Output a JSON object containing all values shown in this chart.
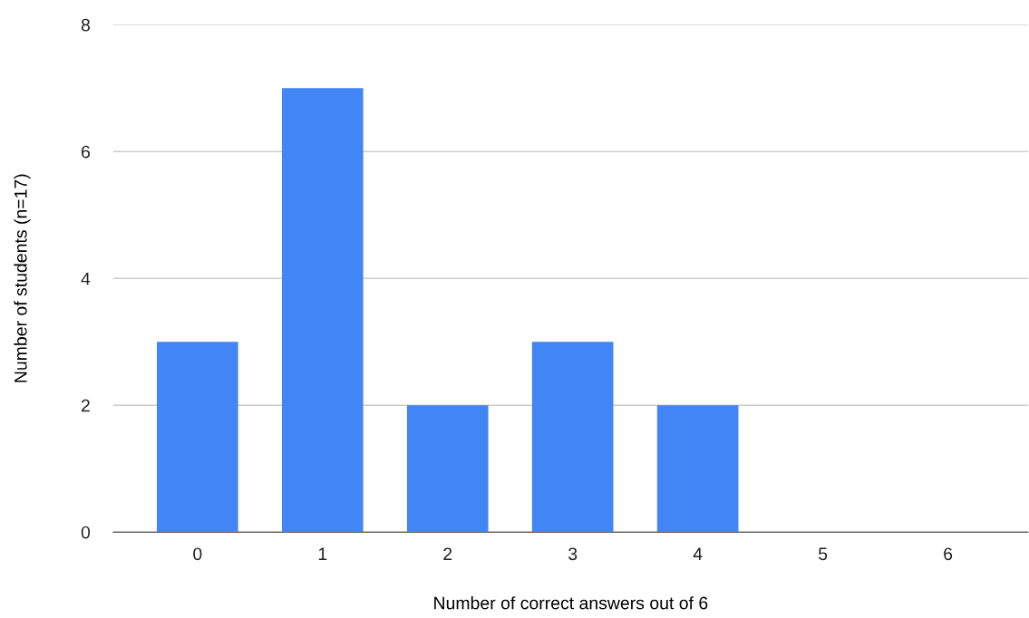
{
  "chart_data": {
    "type": "bar",
    "xlabel": "Number of correct answers out of 6",
    "ylabel": "Number of students (n=17)",
    "categories": [
      "0",
      "1",
      "2",
      "3",
      "4",
      "5",
      "6"
    ],
    "values": [
      3,
      7,
      2,
      3,
      2,
      0,
      0
    ],
    "color": "#4285f4",
    "ylim": [
      0,
      8
    ],
    "yticks": [
      0,
      2,
      4,
      6,
      8
    ],
    "grid": "y",
    "legend": false
  }
}
